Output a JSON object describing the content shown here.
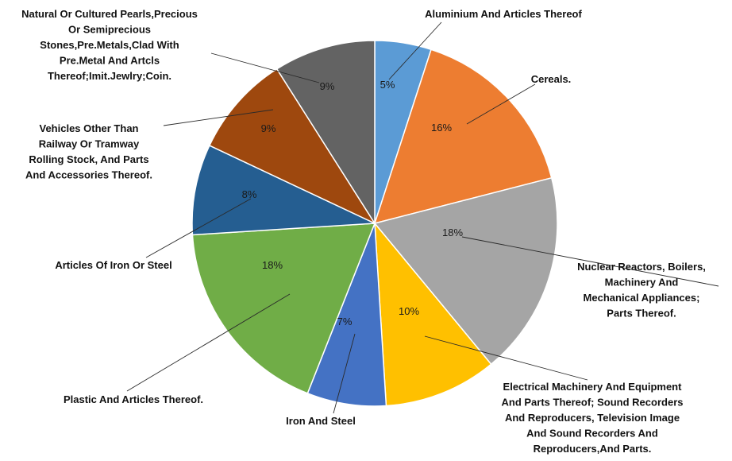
{
  "chart_data": {
    "type": "pie",
    "title": "",
    "start_angle_deg": 0,
    "direction": "clockwise",
    "slices": [
      {
        "label": "Aluminium And Articles Thereof",
        "value": 5,
        "value_label": "5%",
        "color": "#5b9bd5"
      },
      {
        "label": "Cereals.",
        "value": 16,
        "value_label": "16%",
        "color": "#ed7d31"
      },
      {
        "label": "Nuclear Reactors, Boilers, Machinery And Mechanical Appliances; Parts Thereof.",
        "value": 18,
        "value_label": "18%",
        "color": "#a5a5a5"
      },
      {
        "label": "Electrical Machinery And Equipment And Parts Thereof; Sound Recorders And Reproducers, Television Image And Sound Recorders And Reproducers,And Parts.",
        "value": 10,
        "value_label": "10%",
        "color": "#ffc000"
      },
      {
        "label": "Iron And Steel",
        "value": 7,
        "value_label": "7%",
        "color": "#4472c4"
      },
      {
        "label": "Plastic And Articles Thereof.",
        "value": 18,
        "value_label": "18%",
        "color": "#70ad47"
      },
      {
        "label": "Articles Of Iron Or Steel",
        "value": 8,
        "value_label": "8%",
        "color": "#255e91"
      },
      {
        "label": "Vehicles Other Than Railway Or Tramway Rolling Stock, And Parts And Accessories Thereof.",
        "value": 9,
        "value_label": "9%",
        "color": "#9e480e"
      },
      {
        "label": "Natural Or Cultured Pearls,Precious Or Semiprecious Stones,Pre.Metals,Clad With Pre.Metal And Artcls Thereof;Imit.Jewlry;Coin.",
        "value": 9,
        "value_label": "9%",
        "color": "#636363"
      }
    ]
  }
}
